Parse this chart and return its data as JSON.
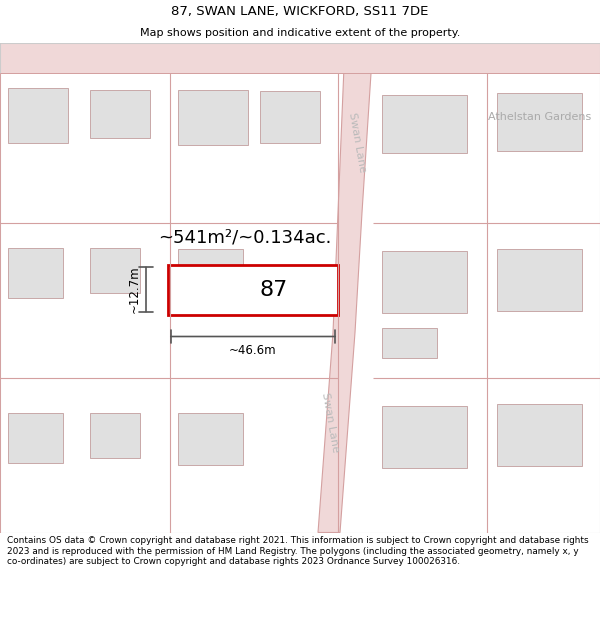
{
  "title": "87, SWAN LANE, WICKFORD, SS11 7DE",
  "subtitle": "Map shows position and indicative extent of the property.",
  "footer": "Contains OS data © Crown copyright and database right 2021. This information is subject to Crown copyright and database rights 2023 and is reproduced with the permission of HM Land Registry. The polygons (including the associated geometry, namely x, y co-ordinates) are subject to Crown copyright and database rights 2023 Ordnance Survey 100026316.",
  "map_bg": "#ffffff",
  "road_color": "#d4a0a0",
  "road_fill": "#f0d8d8",
  "highlight_color": "#cc0000",
  "building_fill": "#e0e0e0",
  "building_edge": "#c8a8a8",
  "dim_line_color": "#555555",
  "area_label": "~541m²/~0.134ac.",
  "width_label": "~46.6m",
  "height_label": "~12.7m",
  "property_number": "87",
  "street_label": "Swan Lane",
  "street_label2": "Swan Lane",
  "gardens_label": "Athelstan Gardens"
}
